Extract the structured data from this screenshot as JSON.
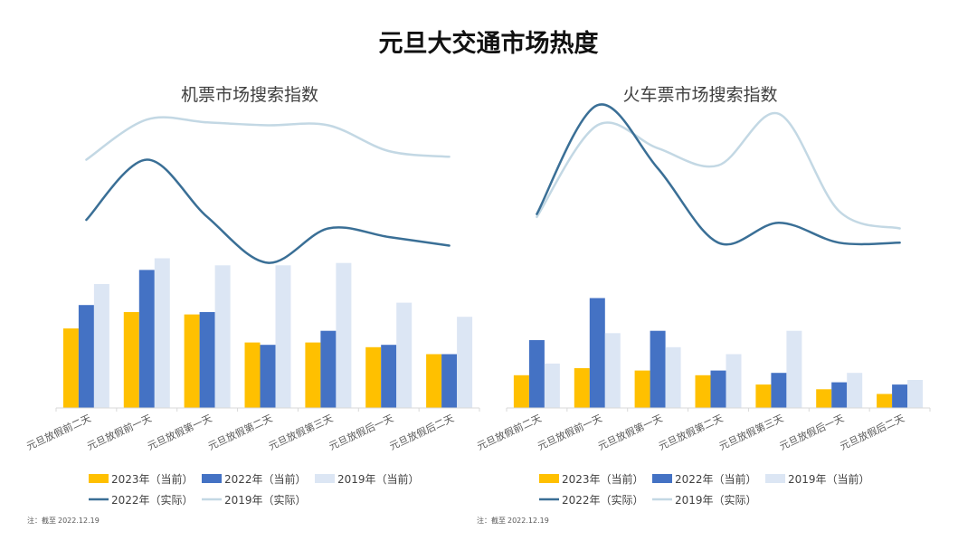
{
  "title": "元旦大交通市场热度",
  "note_label": "注：截至",
  "note_date": "2022.12.19",
  "colors": {
    "bar_2023": "#FFC000",
    "bar_2022": "#4472C4",
    "bar_2019": "#DCE6F4",
    "line_2022": "#3A6F96",
    "line_2019": "#C3D8E4",
    "axis": "#D9D9D9"
  },
  "legend": {
    "bar_2023": "2023年（当前）",
    "bar_2022": "2022年（当前）",
    "bar_2019": "2019年（当前）",
    "line_2022": "2022年（实际）",
    "line_2019": "2019年（实际）"
  },
  "chart_data": [
    {
      "type": "bar+line",
      "title": "机票市场搜索指数",
      "categories": [
        "元旦放假前二天",
        "元旦放假前一天",
        "元旦放假第一天",
        "元旦放假第二天",
        "元旦放假第三天",
        "元旦放假后一天",
        "元旦放假后二天"
      ],
      "bars": {
        "2023_current": [
          34,
          41,
          40,
          28,
          28,
          26,
          23
        ],
        "2022_current": [
          44,
          59,
          41,
          27,
          33,
          27,
          23
        ],
        "2019_current": [
          53,
          64,
          61,
          61,
          62,
          45,
          39
        ]
      },
      "bar_ylim": [
        0,
        70
      ],
      "lines": {
        "2022_actual": [
          58,
          79,
          59,
          43,
          55,
          52,
          49
        ],
        "2019_actual": [
          79,
          93,
          92,
          91,
          91,
          82,
          80
        ]
      },
      "line_ylim": [
        0,
        100
      ]
    },
    {
      "type": "bar+line",
      "title": "火车票市场搜索指数",
      "categories": [
        "元旦放假前二天",
        "元旦放假前一天",
        "元旦放假第一天",
        "元旦放假第二天",
        "元旦放假第三天",
        "元旦放假后一天",
        "元旦放假后二天"
      ],
      "bars": {
        "2023_current": [
          14,
          17,
          16,
          14,
          10,
          8,
          6
        ],
        "2022_current": [
          29,
          47,
          33,
          16,
          15,
          11,
          10
        ],
        "2019_current": [
          19,
          32,
          26,
          23,
          33,
          15,
          12
        ]
      },
      "bar_ylim": [
        0,
        70
      ],
      "lines": {
        "2022_actual": [
          60,
          98,
          76,
          50,
          57,
          50,
          50
        ],
        "2019_actual": [
          59,
          91,
          83,
          77,
          95,
          61,
          55
        ]
      },
      "line_ylim": [
        0,
        100
      ]
    }
  ]
}
